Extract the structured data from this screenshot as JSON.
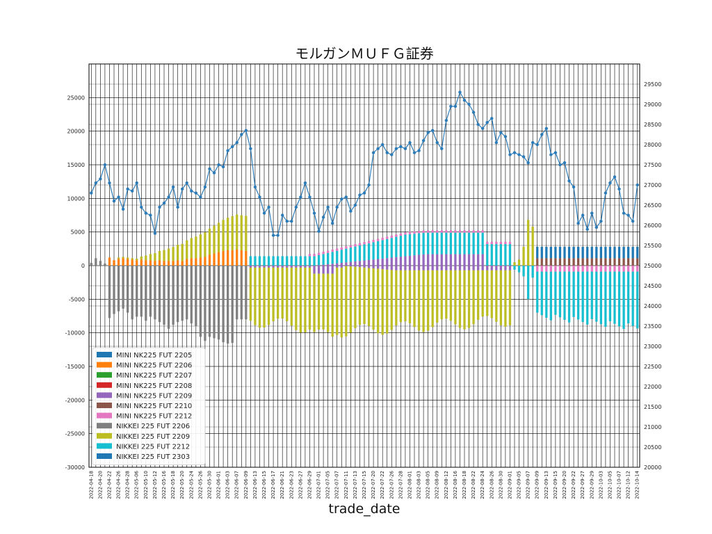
{
  "chart_data": {
    "type": "bar",
    "title": "モルガンＭＵＦＧ証券",
    "xlabel": "trade_date",
    "ylim": [
      -30000,
      30000
    ],
    "y2lim": [
      20000,
      30000
    ],
    "yticks": [
      -30000,
      -25000,
      -20000,
      -15000,
      -10000,
      -5000,
      0,
      5000,
      10000,
      15000,
      20000,
      25000
    ],
    "y2ticks": [
      20000,
      20500,
      21000,
      21500,
      22000,
      22500,
      23000,
      23500,
      24000,
      24500,
      25000,
      25500,
      26000,
      26500,
      27000,
      27500,
      28000,
      28500,
      29000,
      29500
    ],
    "grid": true,
    "legend_position": "lower-left",
    "colors": {
      "MINI NK225 FUT 2205": "#1f77b4",
      "MINI NK225 FUT 2206": "#ff7f0e",
      "MINI NK225 FUT 2207": "#2ca02c",
      "MINI NK225 FUT 2208": "#d62728",
      "MINI NK225 FUT 2209": "#9467bd",
      "MINI NK225 FUT 2210": "#8c564b",
      "MINI NK225 FUT 2212": "#e377c2",
      "NIKKEI 225 FUT 2206": "#7f7f7f",
      "NIKKEI 225 FUT 2209": "#bcbd22",
      "NIKKEI 225 FUT 2212": "#17becf",
      "NIKKEI 225 FUT 2303": "#1f77b4",
      "line": "#2b7bb9"
    },
    "legend": [
      "MINI NK225 FUT 2205",
      "MINI NK225 FUT 2206",
      "MINI NK225 FUT 2207",
      "MINI NK225 FUT 2208",
      "MINI NK225 FUT 2209",
      "MINI NK225 FUT 2210",
      "MINI NK225 FUT 2212",
      "NIKKEI 225 FUT 2206",
      "NIKKEI 225 FUT 2209",
      "NIKKEI 225 FUT 2212",
      "NIKKEI 225 FUT 2303"
    ],
    "dates": [
      "2022-04-18",
      "2022-04-19",
      "2022-04-20",
      "2022-04-21",
      "2022-04-22",
      "2022-04-25",
      "2022-04-26",
      "2022-04-27",
      "2022-04-28",
      "2022-05-02",
      "2022-05-06",
      "2022-05-09",
      "2022-05-10",
      "2022-05-11",
      "2022-05-12",
      "2022-05-13",
      "2022-05-16",
      "2022-05-17",
      "2022-05-18",
      "2022-05-19",
      "2022-05-20",
      "2022-05-23",
      "2022-05-24",
      "2022-05-25",
      "2022-05-26",
      "2022-05-27",
      "2022-05-30",
      "2022-05-31",
      "2022-06-01",
      "2022-06-02",
      "2022-06-03",
      "2022-06-06",
      "2022-06-07",
      "2022-06-08",
      "2022-06-09",
      "2022-06-10",
      "2022-06-13",
      "2022-06-14",
      "2022-06-15",
      "2022-06-16",
      "2022-06-17",
      "2022-06-20",
      "2022-06-21",
      "2022-06-22",
      "2022-06-23",
      "2022-06-24",
      "2022-06-27",
      "2022-06-28",
      "2022-06-29",
      "2022-06-30",
      "2022-07-01",
      "2022-07-04",
      "2022-07-05",
      "2022-07-06",
      "2022-07-07",
      "2022-07-08",
      "2022-07-11",
      "2022-07-12",
      "2022-07-13",
      "2022-07-14",
      "2022-07-15",
      "2022-07-19",
      "2022-07-20",
      "2022-07-21",
      "2022-07-22",
      "2022-07-25",
      "2022-07-26",
      "2022-07-27",
      "2022-07-28",
      "2022-07-29",
      "2022-08-01",
      "2022-08-02",
      "2022-08-03",
      "2022-08-04",
      "2022-08-05",
      "2022-08-08",
      "2022-08-09",
      "2022-08-10",
      "2022-08-12",
      "2022-08-15",
      "2022-08-16",
      "2022-08-17",
      "2022-08-18",
      "2022-08-19",
      "2022-08-22",
      "2022-08-23",
      "2022-08-24",
      "2022-08-25",
      "2022-08-26",
      "2022-08-29",
      "2022-08-30",
      "2022-08-31",
      "2022-09-01",
      "2022-09-02",
      "2022-09-05",
      "2022-09-06",
      "2022-09-07",
      "2022-09-08",
      "2022-09-09",
      "2022-09-12",
      "2022-09-13",
      "2022-09-14",
      "2022-09-15",
      "2022-09-16",
      "2022-09-20",
      "2022-09-21",
      "2022-09-22",
      "2022-09-26",
      "2022-09-27",
      "2022-09-28",
      "2022-09-29",
      "2022-09-30",
      "2022-10-03",
      "2022-10-04",
      "2022-10-05",
      "2022-10-06",
      "2022-10-07",
      "2022-10-11",
      "2022-10-12",
      "2022-10-13",
      "2022-10-14"
    ],
    "xtick_labels": [
      "2022-04-18",
      "2022-04-20",
      "2022-04-22",
      "2022-04-26",
      "2022-04-28",
      "2022-05-06",
      "2022-05-10",
      "2022-05-12",
      "2022-05-16",
      "2022-05-18",
      "2022-05-20",
      "2022-05-24",
      "2022-05-26",
      "2022-05-30",
      "2022-06-01",
      "2022-06-03",
      "2022-06-07",
      "2022-06-09",
      "2022-06-13",
      "2022-06-15",
      "2022-06-17",
      "2022-06-21",
      "2022-06-23",
      "2022-06-27",
      "2022-06-29",
      "2022-07-01",
      "2022-07-05",
      "2022-07-07",
      "2022-07-11",
      "2022-07-13",
      "2022-07-15",
      "2022-07-20",
      "2022-07-22",
      "2022-07-26",
      "2022-07-28",
      "2022-08-01",
      "2022-08-03",
      "2022-08-05",
      "2022-08-09",
      "2022-08-12",
      "2022-08-16",
      "2022-08-18",
      "2022-08-22",
      "2022-08-24",
      "2022-08-26",
      "2022-08-30",
      "2022-09-01",
      "2022-09-05",
      "2022-09-07",
      "2022-09-09",
      "2022-09-13",
      "2022-09-15",
      "2022-09-20",
      "2022-09-22",
      "2022-09-27",
      "2022-09-29",
      "2022-10-03",
      "2022-10-05",
      "2022-10-07",
      "2022-10-12",
      "2022-10-14"
    ],
    "series_main": {
      "name_pos": "MINI NK225 FUT 2206",
      "mini_near_pos": [
        1000,
        1300,
        1300,
        1300,
        1200,
        800,
        1000,
        1100,
        1000,
        900,
        800,
        900,
        800,
        800,
        700,
        800,
        700,
        700,
        700,
        800,
        700,
        1000,
        1100,
        1100,
        1200,
        1300,
        1600,
        1800,
        2000,
        2200,
        2300,
        2300,
        2400,
        2300,
        2200
      ],
      "nk_near_neg": [
        -300,
        -800,
        -500,
        -300,
        -7800,
        -7200,
        -6800,
        -6400,
        -7000,
        -8000,
        -7600,
        -7600,
        -8200,
        -7600,
        -8000,
        -8400,
        -8800,
        -9400,
        -8800,
        -8400,
        -8200,
        -8000,
        -8600,
        -9000,
        -10600,
        -11200,
        -10600,
        -10800,
        -11000,
        -11400,
        -11600,
        -11500
      ]
    },
    "ohlc_line": [
      26800,
      27050,
      27150,
      27500,
      27050,
      26600,
      26700,
      26400,
      26900,
      26850,
      27050,
      26450,
      26300,
      26250,
      25800,
      26450,
      26550,
      26700,
      26950,
      26450,
      26900,
      27050,
      26850,
      26800,
      26700,
      26950,
      27400,
      27300,
      27500,
      27450,
      27850,
      27950,
      28050,
      28250,
      28350,
      27900,
      26950,
      26700,
      26300,
      26450,
      25750,
      25750,
      26250,
      26100,
      26100,
      26450,
      26700,
      27050,
      26700,
      26300,
      25850,
      26200,
      26450,
      26050,
      26450,
      26650,
      26700,
      26350,
      26500,
      26750,
      26800,
      27000,
      27800,
      27900,
      28000,
      27800,
      27750,
      27900,
      27950,
      27900,
      28050,
      27800,
      27850,
      28100,
      28300,
      28350,
      28050,
      27900,
      28600,
      28950,
      28950,
      29300,
      29100,
      29000,
      28800,
      28500,
      28400,
      28550,
      28650,
      28050,
      28300,
      28200,
      27750,
      27800,
      27750,
      27700,
      27550,
      28050,
      28000,
      28250,
      28400,
      27750,
      27800,
      27500,
      27550,
      27100,
      26950,
      26050,
      26250,
      25900,
      26300,
      25950,
      26100,
      26800,
      27050,
      27200,
      26900,
      26300,
      26250,
      26100,
      27000
    ]
  }
}
